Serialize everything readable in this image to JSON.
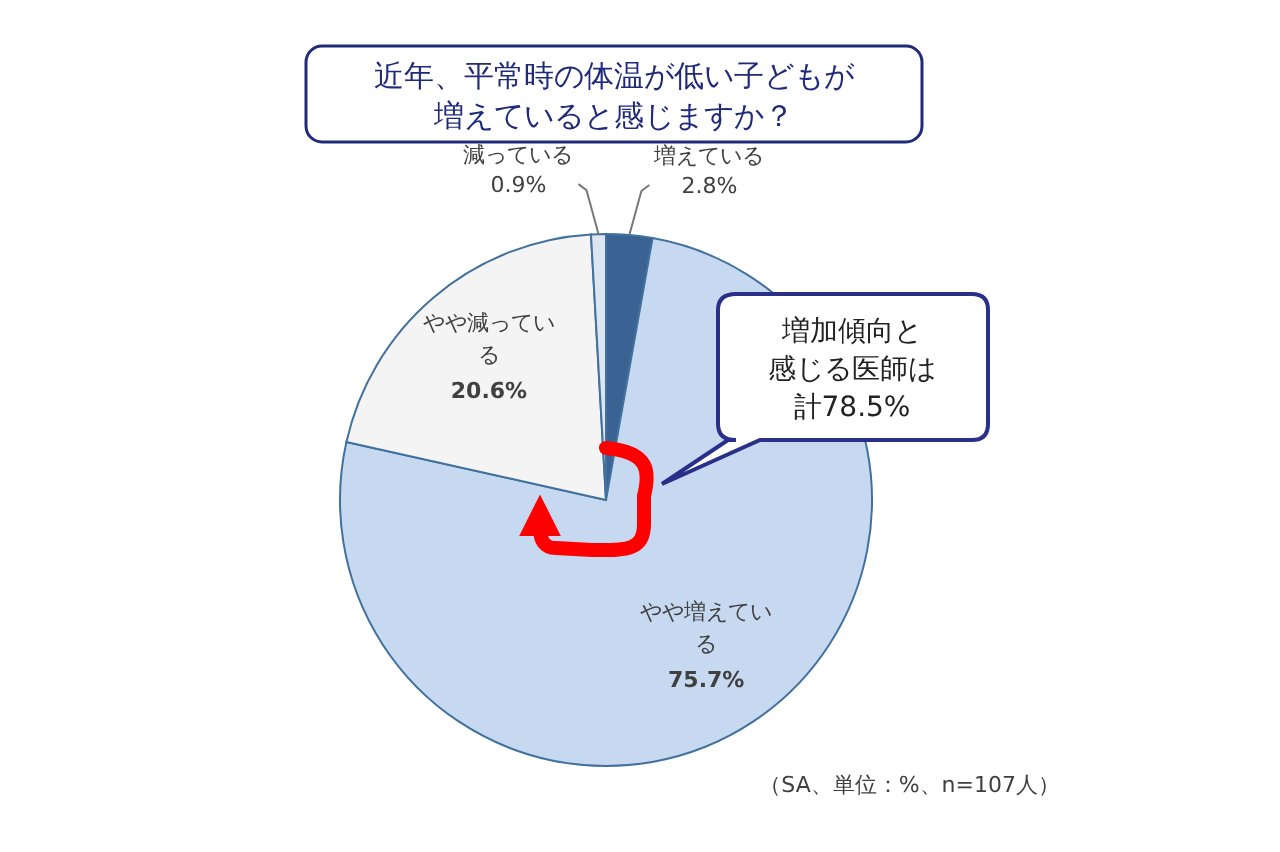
{
  "chart_data": {
    "type": "pie",
    "title": "近年、平常時の体温が低い子どもが増えていると感じますか？",
    "categories": [
      "増えている",
      "やや増えている",
      "やや減っている",
      "減っている"
    ],
    "values": [
      2.8,
      75.7,
      20.6,
      0.9
    ],
    "colors": [
      "#3a6393",
      "#c6d9f1",
      "#f4f4f4",
      "#dce6f2"
    ],
    "value_labels": [
      "2.8%",
      "75.7%",
      "20.6%",
      "0.9%"
    ],
    "annotations": [
      "増加傾向と感じる医師は計78.5%",
      "（SA、単位：%、n=107人）"
    ]
  }
}
